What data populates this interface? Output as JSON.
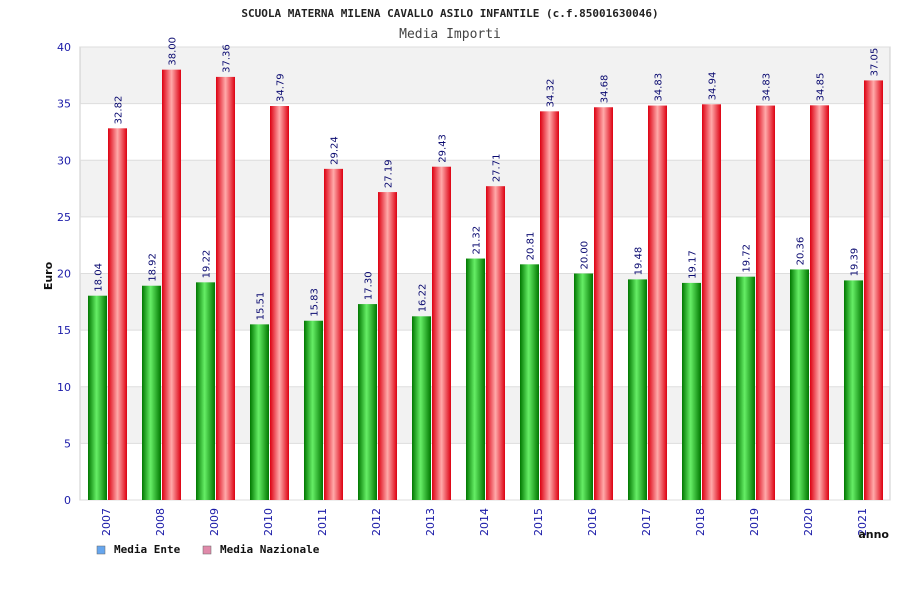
{
  "colors": {
    "green_dark": "#007700",
    "green_light": "#66ee66",
    "red_dark": "#dd0011",
    "red_light": "#ffaaaa",
    "band": "#f2f2f2",
    "grid": "#dddddd",
    "legend_ente": "#66a6ee",
    "legend_naz": "#e08aaa"
  },
  "chart_data": {
    "type": "bar",
    "title": "SCUOLA MATERNA MILENA CAVALLO ASILO INFANTILE (c.f.85001630046)",
    "subtitle": "Media Importi",
    "xlabel": "anno",
    "ylabel": "Euro",
    "ylim": [
      0,
      40
    ],
    "yticks": [
      "0",
      "5",
      "10",
      "15",
      "20",
      "25",
      "30",
      "35",
      "40"
    ],
    "categories": [
      "2007",
      "2008",
      "2009",
      "2010",
      "2011",
      "2012",
      "2013",
      "2014",
      "2015",
      "2016",
      "2017",
      "2018",
      "2019",
      "2020",
      "2021"
    ],
    "series": [
      {
        "name": "Media Ente",
        "values": [
          18.04,
          18.92,
          19.22,
          15.51,
          15.83,
          17.3,
          16.22,
          21.32,
          20.81,
          20.0,
          19.48,
          19.17,
          19.72,
          20.36,
          19.39
        ],
        "labels": [
          "18.04",
          "18.92",
          "19.22",
          "15.51",
          "15.83",
          "17.30",
          "16.22",
          "21.32",
          "20.81",
          "20.00",
          "19.48",
          "19.17",
          "19.72",
          "20.36",
          "19.39"
        ]
      },
      {
        "name": "Media Nazionale",
        "values": [
          32.82,
          38.0,
          37.36,
          34.79,
          29.24,
          27.19,
          29.43,
          27.71,
          34.32,
          34.68,
          34.83,
          34.94,
          34.83,
          34.85,
          37.05
        ],
        "labels": [
          "32.82",
          "38.00",
          "37.36",
          "34.79",
          "29.24",
          "27.19",
          "29.43",
          "27.71",
          "34.32",
          "34.68",
          "34.83",
          "34.94",
          "34.83",
          "34.85",
          "37.05"
        ]
      }
    ],
    "legend": [
      "Media Ente",
      "Media Nazionale"
    ],
    "legend_position": "bottom-left",
    "grid": true
  }
}
